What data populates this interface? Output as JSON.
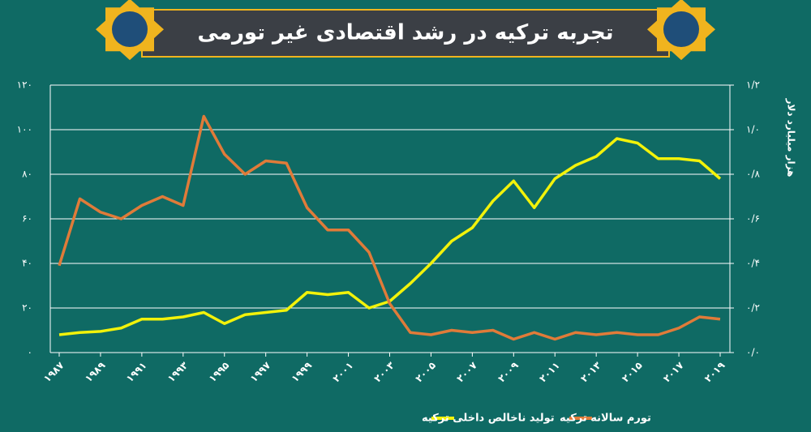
{
  "chart_data": {
    "type": "line",
    "title": "تجربه ترکیه در رشد اقتصادی غیر تورمی",
    "y2_label": "هزار میلیارد دلار",
    "x": [
      1987,
      1988,
      1989,
      1990,
      1991,
      1992,
      1993,
      1994,
      1995,
      1996,
      1997,
      1998,
      1999,
      2000,
      2001,
      2002,
      2003,
      2004,
      2005,
      2006,
      2007,
      2008,
      2009,
      2010,
      2011,
      2012,
      2013,
      2014,
      2015,
      2016,
      2017,
      2018,
      2019
    ],
    "xlim": [
      1987,
      2019
    ],
    "xticks": [
      {
        "value": 1987,
        "label": "۱۹۸۷"
      },
      {
        "value": 1989,
        "label": "۱۹۸۹"
      },
      {
        "value": 1991,
        "label": "۱۹۹۱"
      },
      {
        "value": 1993,
        "label": "۱۹۹۳"
      },
      {
        "value": 1995,
        "label": "۱۹۹۵"
      },
      {
        "value": 1997,
        "label": "۱۹۹۷"
      },
      {
        "value": 1999,
        "label": "۱۹۹۹"
      },
      {
        "value": 2001,
        "label": "۲۰۰۱"
      },
      {
        "value": 2003,
        "label": "۲۰۰۳"
      },
      {
        "value": 2005,
        "label": "۲۰۰۵"
      },
      {
        "value": 2007,
        "label": "۲۰۰۷"
      },
      {
        "value": 2009,
        "label": "۲۰۰۹"
      },
      {
        "value": 2011,
        "label": "۲۰۱۱"
      },
      {
        "value": 2013,
        "label": "۲۰۱۳"
      },
      {
        "value": 2015,
        "label": "۲۰۱۵"
      },
      {
        "value": 2017,
        "label": "۲۰۱۷"
      },
      {
        "value": 2019,
        "label": "۲۰۱۹"
      }
    ],
    "ylim": [
      0,
      120
    ],
    "yticks": [
      {
        "value": 0,
        "label": "۰"
      },
      {
        "value": 20,
        "label": "۲۰"
      },
      {
        "value": 40,
        "label": "۴۰"
      },
      {
        "value": 60,
        "label": "۶۰"
      },
      {
        "value": 80,
        "label": "۸۰"
      },
      {
        "value": 100,
        "label": "۱۰۰"
      },
      {
        "value": 120,
        "label": "۱۲۰"
      }
    ],
    "y2lim": [
      0,
      1.2
    ],
    "y2ticks": [
      {
        "value": 0,
        "label": "۰/۰"
      },
      {
        "value": 0.2,
        "label": "۰/۲"
      },
      {
        "value": 0.4,
        "label": "۰/۴"
      },
      {
        "value": 0.6,
        "label": "۰/۶"
      },
      {
        "value": 0.8,
        "label": "۰/۸"
      },
      {
        "value": 1.0,
        "label": "۱/۰"
      },
      {
        "value": 1.2,
        "label": "۱/۲"
      }
    ],
    "grid": true,
    "series": [
      {
        "name": "تولید ناخالص داخلی ترکیه",
        "color": "#f2f20a",
        "axis": "y2",
        "values": [
          0.08,
          0.09,
          0.095,
          0.11,
          0.15,
          0.15,
          0.16,
          0.18,
          0.13,
          0.17,
          0.18,
          0.19,
          0.27,
          0.26,
          0.27,
          0.2,
          0.23,
          0.31,
          0.4,
          0.5,
          0.56,
          0.68,
          0.77,
          0.65,
          0.78,
          0.84,
          0.88,
          0.96,
          0.94,
          0.87,
          0.87,
          0.86,
          0.78
        ]
      },
      {
        "name": "تورم سالانه ترکیه",
        "color": "#e07b39",
        "values": [
          39,
          69,
          63,
          60,
          66,
          70,
          66,
          106,
          89,
          80,
          86,
          85,
          65,
          55,
          55,
          45,
          22,
          9,
          8,
          10,
          9,
          10,
          6,
          9,
          6,
          9,
          8,
          9,
          8,
          8,
          11,
          16,
          15
        ]
      }
    ]
  }
}
